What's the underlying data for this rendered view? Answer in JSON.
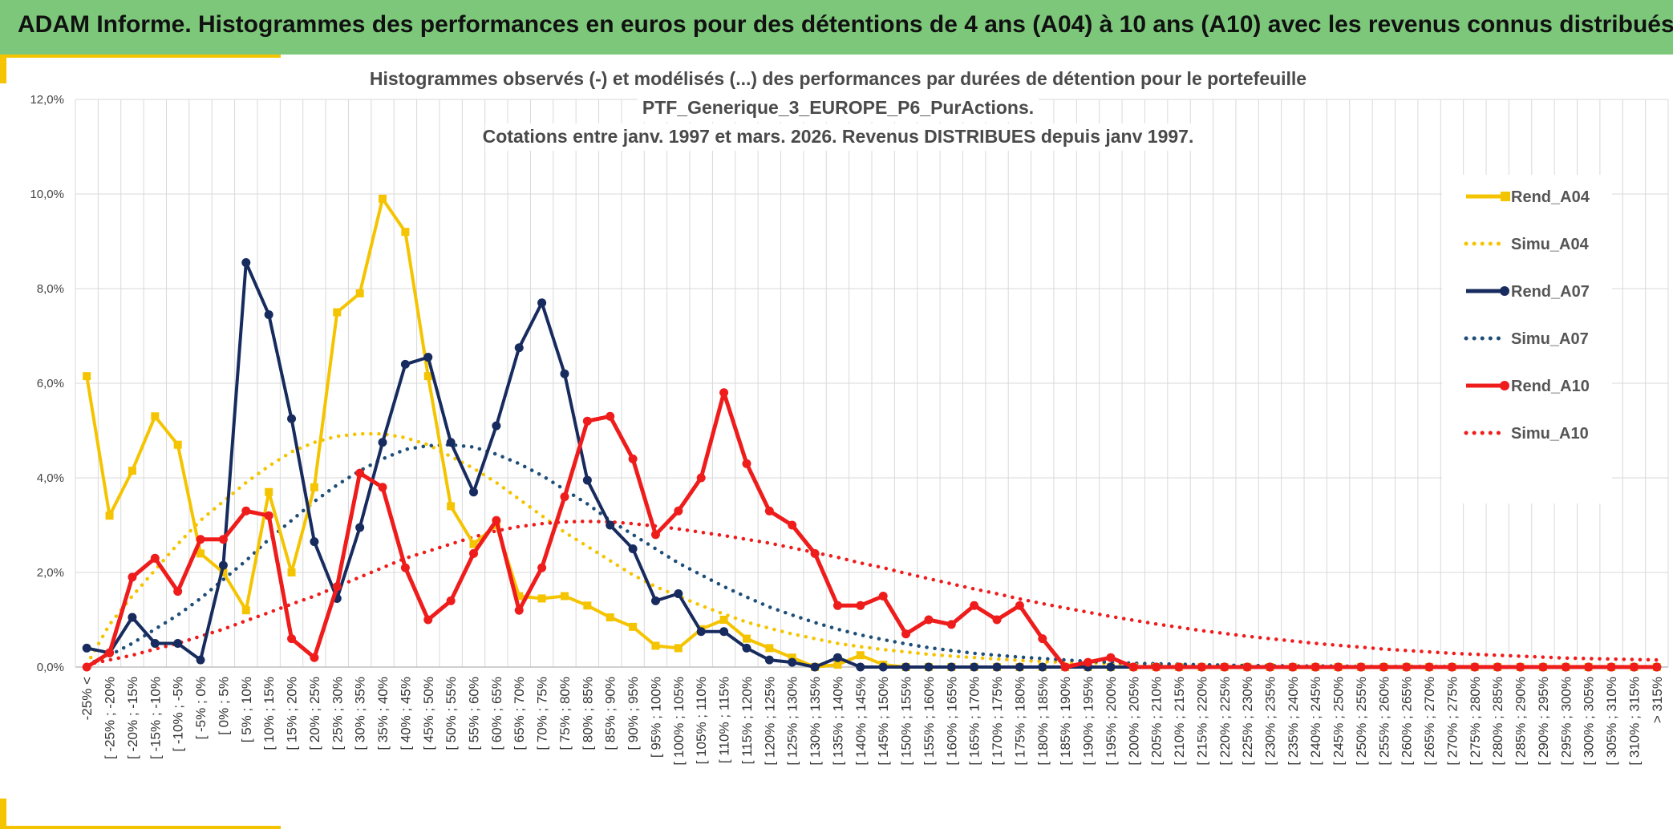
{
  "page": {
    "banner_title": "ADAM Informe. Histogrammes des performances en euros pour des détentions de 4 ans (A04) à 10 ans (A10) avec les revenus connus distribués"
  },
  "chart_data": {
    "type": "line",
    "title_lines": [
      "Histogrammes observés (-) et modélisés (...) des performances par durées de détention pour le portefeuille",
      "PTF_Generique_3_EUROPE_P6_PurActions.",
      "Cotations entre janv. 1997 et mars. 2026. Revenus DISTRIBUES depuis janv 1997."
    ],
    "ylim": [
      0,
      12
    ],
    "yticks": [
      0,
      2,
      4,
      6,
      8,
      10,
      12
    ],
    "ytick_labels": [
      "0,0%",
      "2,0%",
      "4,0%",
      "6,0%",
      "8,0%",
      "10,0%",
      "12,0%"
    ],
    "categories": [
      "-25% <",
      "[ -25% ; -20%",
      "[ -20% ; -15%",
      "[ -15% ; -10%",
      "[ -10% ; -5%",
      "[ -5% ; 0%",
      "[ 0% ; 5%",
      "[ 5% ; 10%",
      "[ 10% ; 15%",
      "[ 15% ; 20%",
      "[ 20% ; 25%",
      "[ 25% ; 30%",
      "[ 30% ; 35%",
      "[ 35% ; 40%",
      "[ 40% ; 45%",
      "[ 45% ; 50%",
      "[ 50% ; 55%",
      "[ 55% ; 60%",
      "[ 60% ; 65%",
      "[ 65% ; 70%",
      "[ 70% ; 75%",
      "[ 75% ; 80%",
      "[ 80% ; 85%",
      "[ 85% ; 90%",
      "[ 90% ; 95%",
      "[ 95% ; 100%",
      "[ 100% ; 105%",
      "[ 105% ; 110%",
      "[ 110% ; 115%",
      "[ 115% ; 120%",
      "[ 120% ; 125%",
      "[ 125% ; 130%",
      "[ 130% ; 135%",
      "[ 135% ; 140%",
      "[ 140% ; 145%",
      "[ 145% ; 150%",
      "[ 150% ; 155%",
      "[ 155% ; 160%",
      "[ 160% ; 165%",
      "[ 165% ; 170%",
      "[ 170% ; 175%",
      "[ 175% ; 180%",
      "[ 180% ; 185%",
      "[ 185% ; 190%",
      "[ 190% ; 195%",
      "[ 195% ; 200%",
      "[ 200% ; 205%",
      "[ 205% ; 210%",
      "[ 210% ; 215%",
      "[ 215% ; 220%",
      "[ 220% ; 225%",
      "[ 225% ; 230%",
      "[ 230% ; 235%",
      "[ 235% ; 240%",
      "[ 240% ; 245%",
      "[ 245% ; 250%",
      "[ 250% ; 255%",
      "[ 255% ; 260%",
      "[ 260% ; 265%",
      "[ 265% ; 270%",
      "[ 270% ; 275%",
      "[ 275% ; 280%",
      "[ 280% ; 285%",
      "[ 285% ; 290%",
      "[ 290% ; 295%",
      "[ 295% ; 300%",
      "[ 300% ; 305%",
      "[ 305% ; 310%",
      "[ 310% ; 315%",
      "> 315%"
    ],
    "series": [
      {
        "name": "Rend_A04",
        "style": "solid",
        "marker": "square",
        "color": "#f5c400",
        "values": [
          6.15,
          3.2,
          4.15,
          5.3,
          4.7,
          2.4,
          2.0,
          1.2,
          3.7,
          2.0,
          3.8,
          7.5,
          7.9,
          9.9,
          9.2,
          6.15,
          3.4,
          2.6,
          3.0,
          1.5,
          1.45,
          1.5,
          1.3,
          1.05,
          0.85,
          0.45,
          0.4,
          0.8,
          1.0,
          0.6,
          0.4,
          0.2,
          0.0,
          0.05,
          0.25,
          0.05,
          0.0,
          0.0,
          0.0,
          0.0,
          0.0,
          0.0,
          0.0,
          0.0,
          0.0,
          0.0,
          0.0,
          0.0,
          0.0,
          0.0,
          0.0,
          0.0,
          0.0,
          0.0,
          0.0,
          0.0,
          0.0,
          0.0,
          0.0,
          0.0,
          0.0,
          0.0,
          0.0,
          0.0,
          0.0,
          0.0,
          0.0,
          0.0,
          0.0,
          0.0
        ]
      },
      {
        "name": "Simu_A04",
        "style": "dotted",
        "color": "#f5c400",
        "values": [
          0.05,
          0.9,
          1.5,
          2.05,
          2.6,
          3.1,
          3.5,
          3.9,
          4.25,
          4.55,
          4.75,
          4.88,
          4.93,
          4.93,
          4.85,
          4.7,
          4.45,
          4.2,
          3.9,
          3.55,
          3.2,
          2.85,
          2.55,
          2.25,
          1.95,
          1.7,
          1.5,
          1.3,
          1.12,
          0.95,
          0.82,
          0.7,
          0.6,
          0.5,
          0.43,
          0.37,
          0.32,
          0.27,
          0.23,
          0.2,
          0.17,
          0.14,
          0.12,
          0.1,
          0.09,
          0.07,
          0.06,
          0.05,
          0.05,
          0.04,
          0.03,
          0.03,
          0.02,
          0.02,
          0.02,
          0.01,
          0.01,
          0.01,
          0.01,
          0.01,
          0.01,
          0.0,
          0.0,
          0.0,
          0.0,
          0.0,
          0.0,
          0.0,
          0.0,
          0.0
        ]
      },
      {
        "name": "Rend_A07",
        "style": "solid",
        "marker": "circle",
        "color": "#172b5e",
        "values": [
          0.4,
          0.3,
          1.05,
          0.5,
          0.5,
          0.15,
          2.15,
          8.55,
          7.45,
          5.25,
          2.65,
          1.45,
          2.95,
          4.75,
          6.4,
          6.55,
          4.75,
          3.7,
          5.1,
          6.75,
          7.7,
          6.2,
          3.95,
          3.0,
          2.5,
          1.4,
          1.55,
          0.75,
          0.75,
          0.4,
          0.15,
          0.1,
          0.0,
          0.2,
          0.0,
          0.0,
          0.0,
          0.0,
          0.0,
          0.0,
          0.0,
          0.0,
          0.0,
          0.0,
          0.0,
          0.0,
          0.0,
          0.0,
          0.0,
          0.0,
          0.0,
          0.0,
          0.0,
          0.0,
          0.0,
          0.0,
          0.0,
          0.0,
          0.0,
          0.0,
          0.0,
          0.0,
          0.0,
          0.0,
          0.0,
          0.0,
          0.0,
          0.0,
          0.0,
          0.0
        ]
      },
      {
        "name": "Simu_A07",
        "style": "dotted",
        "color": "#1f4e79",
        "values": [
          0.05,
          0.25,
          0.5,
          0.8,
          1.1,
          1.45,
          1.85,
          2.25,
          2.7,
          3.1,
          3.5,
          3.85,
          4.15,
          4.4,
          4.6,
          4.68,
          4.7,
          4.65,
          4.5,
          4.3,
          4.05,
          3.75,
          3.45,
          3.1,
          2.8,
          2.5,
          2.2,
          1.95,
          1.7,
          1.48,
          1.27,
          1.1,
          0.94,
          0.8,
          0.68,
          0.58,
          0.49,
          0.41,
          0.35,
          0.29,
          0.25,
          0.21,
          0.18,
          0.15,
          0.12,
          0.1,
          0.08,
          0.07,
          0.06,
          0.05,
          0.04,
          0.03,
          0.03,
          0.02,
          0.02,
          0.02,
          0.01,
          0.01,
          0.01,
          0.01,
          0.01,
          0.0,
          0.0,
          0.0,
          0.0,
          0.0,
          0.0,
          0.0,
          0.0,
          0.0
        ]
      },
      {
        "name": "Rend_A10",
        "style": "solid",
        "marker": "circle",
        "color": "#ef1c1c",
        "values": [
          0.0,
          0.3,
          1.9,
          2.3,
          1.6,
          2.7,
          2.7,
          3.3,
          3.2,
          0.6,
          0.2,
          1.7,
          4.1,
          3.8,
          2.1,
          1.0,
          1.4,
          2.4,
          3.1,
          1.2,
          2.1,
          3.6,
          5.2,
          5.3,
          4.4,
          2.8,
          3.3,
          4.0,
          5.8,
          4.3,
          3.3,
          3.0,
          2.4,
          1.3,
          1.3,
          1.5,
          0.7,
          1.0,
          0.9,
          1.3,
          1.0,
          1.3,
          0.6,
          0.0,
          0.1,
          0.2,
          0.0,
          0.0,
          0.0,
          0.0,
          0.0,
          0.0,
          0.0,
          0.0,
          0.0,
          0.0,
          0.0,
          0.0,
          0.0,
          0.0,
          0.0,
          0.0,
          0.0,
          0.0,
          0.0,
          0.0,
          0.0,
          0.0,
          0.0,
          0.0
        ]
      },
      {
        "name": "Simu_A10",
        "style": "dotted",
        "color": "#ef1c1c",
        "values": [
          0.05,
          0.15,
          0.25,
          0.38,
          0.5,
          0.65,
          0.8,
          0.98,
          1.15,
          1.33,
          1.5,
          1.7,
          1.9,
          2.1,
          2.3,
          2.45,
          2.6,
          2.75,
          2.88,
          2.97,
          3.03,
          3.07,
          3.08,
          3.07,
          3.03,
          2.98,
          2.92,
          2.85,
          2.78,
          2.7,
          2.62,
          2.52,
          2.42,
          2.32,
          2.2,
          2.1,
          1.98,
          1.87,
          1.76,
          1.65,
          1.55,
          1.44,
          1.34,
          1.25,
          1.16,
          1.07,
          0.99,
          0.91,
          0.84,
          0.77,
          0.71,
          0.65,
          0.6,
          0.55,
          0.5,
          0.46,
          0.42,
          0.38,
          0.35,
          0.32,
          0.29,
          0.27,
          0.25,
          0.23,
          0.21,
          0.19,
          0.18,
          0.17,
          0.16,
          0.15
        ]
      }
    ],
    "legend": {
      "position": "right",
      "entries": [
        "Rend_A04",
        "Simu_A04",
        "Rend_A07",
        "Simu_A07",
        "Rend_A10",
        "Simu_A10"
      ]
    }
  }
}
